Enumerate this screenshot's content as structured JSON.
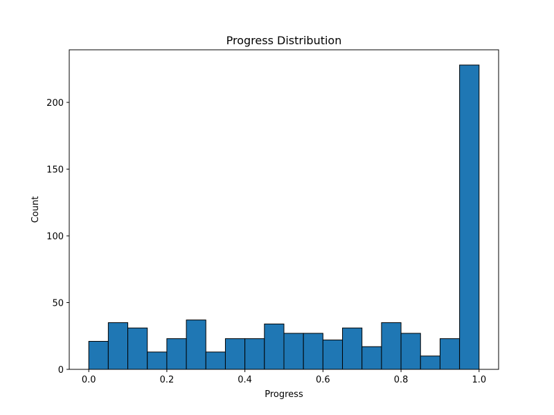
{
  "chart_data": {
    "type": "bar",
    "title": "Progress Distribution",
    "xlabel": "Progress",
    "ylabel": "Count",
    "bin_edges": [
      0.0,
      0.05,
      0.1,
      0.15,
      0.2,
      0.25,
      0.3,
      0.35,
      0.4,
      0.45,
      0.5,
      0.55,
      0.6,
      0.65,
      0.7,
      0.75,
      0.8,
      0.85,
      0.9,
      0.95,
      1.0
    ],
    "values": [
      21,
      35,
      31,
      13,
      23,
      37,
      13,
      23,
      23,
      34,
      27,
      27,
      22,
      31,
      17,
      35,
      27,
      10,
      23,
      228
    ],
    "xlim": [
      -0.05,
      1.05
    ],
    "ylim": [
      0,
      239.4
    ],
    "xticks": [
      0.0,
      0.2,
      0.4,
      0.6,
      0.8,
      1.0
    ],
    "xtick_labels": [
      "0.0",
      "0.2",
      "0.4",
      "0.6",
      "0.8",
      "1.0"
    ],
    "yticks": [
      0,
      50,
      100,
      150,
      200
    ],
    "ytick_labels": [
      "0",
      "50",
      "100",
      "150",
      "200"
    ],
    "bar_color": "#1f77b4",
    "edge_color": "#000000",
    "grid": false,
    "legend": "none"
  }
}
